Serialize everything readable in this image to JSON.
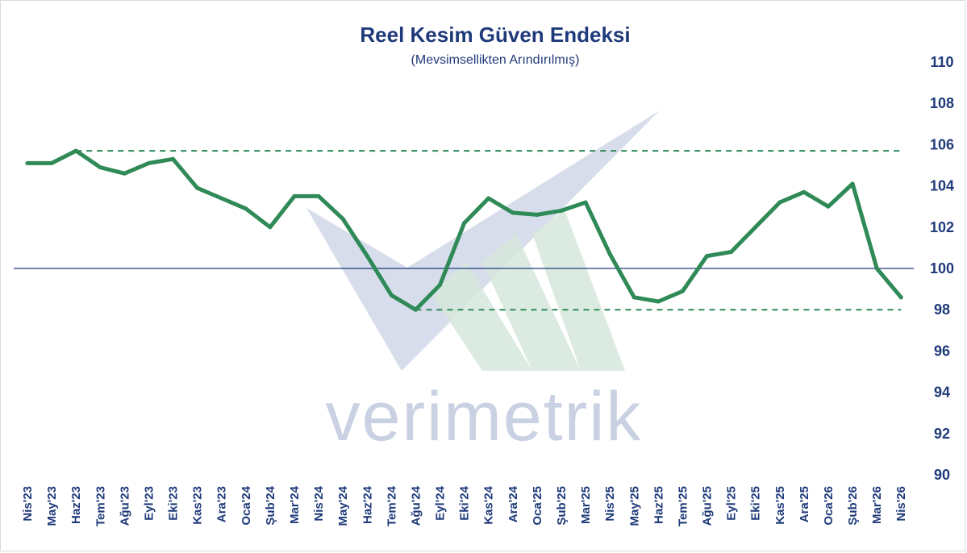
{
  "chart_data": {
    "type": "line",
    "title": "Reel Kesim Güven Endeksi",
    "subtitle": "(Mevsimsellikten Arındırılmış)",
    "xlabel": "",
    "ylabel": "",
    "ylim": [
      90,
      110
    ],
    "yticks": [
      90,
      92,
      94,
      96,
      98,
      100,
      102,
      104,
      106,
      108,
      110
    ],
    "categories": [
      "Nis'23",
      "May'23",
      "Haz'23",
      "Tem'23",
      "Ağu'23",
      "Eyl'23",
      "Eki'23",
      "Kas'23",
      "Ara'23",
      "Oca'24",
      "Şub'24",
      "Mar'24",
      "Nis'24",
      "May'24",
      "Haz'24",
      "Tem'24",
      "Ağu'24",
      "Eyl'24",
      "Eki'24",
      "Kas'24",
      "Ara'24",
      "Oca'25",
      "Şub'25",
      "Mar'25",
      "Nis'25",
      "May'25",
      "Haz'25",
      "Tem'25",
      "Ağu'25",
      "Eyl'25",
      "Eki'25",
      "Kas'25",
      "Ara'25",
      "Oca'26",
      "Şub'26",
      "Mar'26",
      "Nis'26"
    ],
    "series": [
      {
        "values": [
          105.1,
          105.1,
          105.7,
          104.9,
          104.6,
          105.1,
          105.3,
          103.9,
          103.4,
          102.9,
          102.0,
          103.5,
          103.5,
          102.4,
          100.6,
          98.7,
          98.0,
          99.2,
          102.2,
          103.4,
          102.7,
          102.6,
          102.8,
          103.2,
          100.7,
          98.6,
          98.4,
          98.9,
          100.6,
          100.8,
          102.0,
          103.2,
          103.7,
          103.0,
          104.1,
          100.0,
          98.6
        ],
        "color": "#2f8a57"
      }
    ],
    "reference_lines": [
      {
        "value": 105.7,
        "style": "dashed",
        "color": "#2f8a57",
        "from_category": "Haz'23"
      },
      {
        "value": 98.0,
        "style": "dashed",
        "color": "#2f8a57",
        "from_category": "Ağu'24"
      },
      {
        "value": 100,
        "style": "solid",
        "color": "#1f3a7a"
      }
    ],
    "grid": false,
    "legend": "none",
    "y_axis_side": "right"
  },
  "watermark": {
    "text": "verimetrik"
  },
  "colors": {
    "text": "#1f3a7a",
    "line": "#2f8a57",
    "watermark_blue": "#c9d1e3",
    "watermark_green": "#d6e8dc"
  }
}
